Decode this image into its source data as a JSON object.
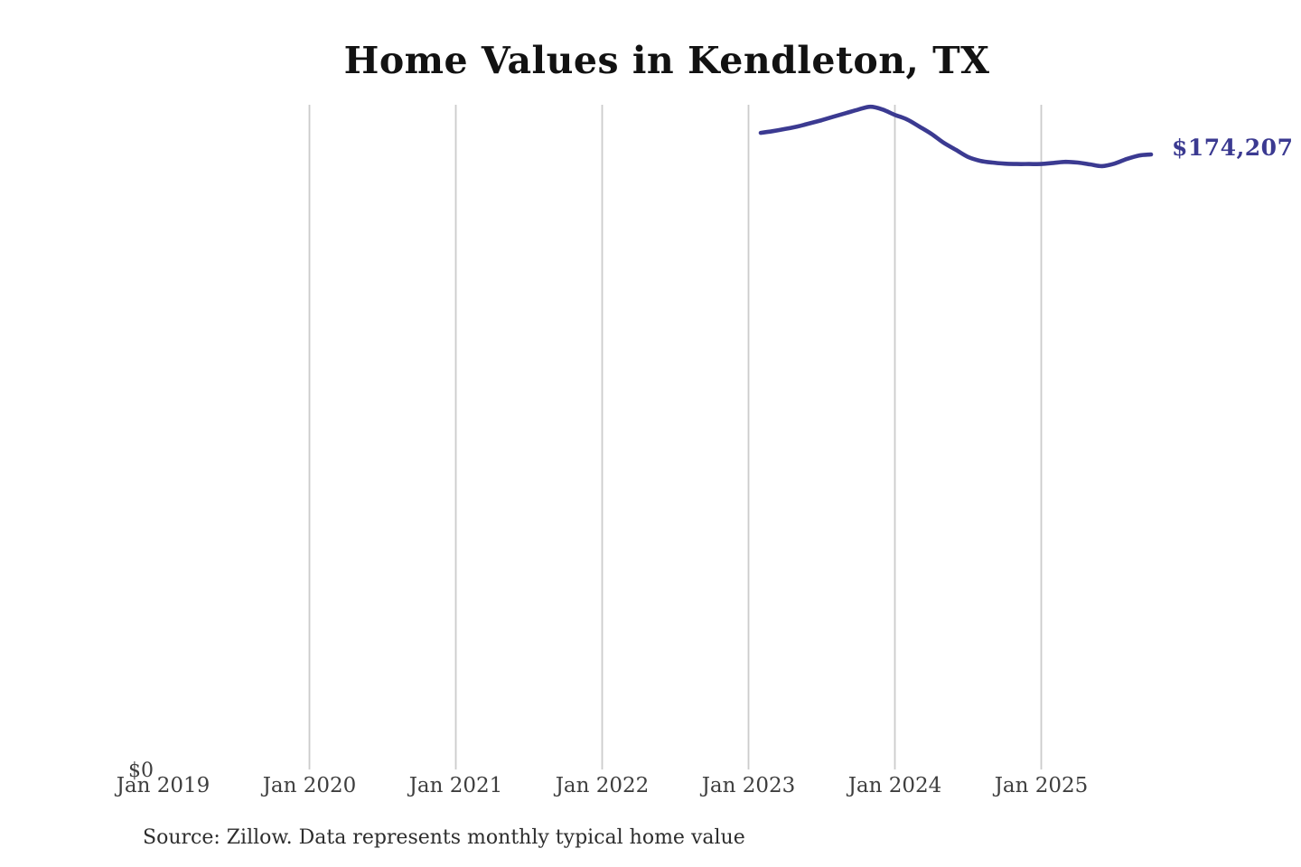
{
  "title": "Home Values in Kendleton, TX",
  "source_note": "Source: Zillow. Data represents monthly typical home value",
  "end_label": "$174,207",
  "colors": {
    "background": "#ffffff",
    "title": "#121212",
    "axis": "#3e3e3e",
    "source": "#2d2d2d",
    "grid": "#cccccc",
    "line": "#3b3a91",
    "value_label": "#3b3a91"
  },
  "chart_data": {
    "type": "line",
    "title": "Home Values in Kendleton, TX",
    "xlabel": "",
    "ylabel": "",
    "grid": "vertical-only",
    "legend": "none",
    "x_tick_labels": [
      "Jan 2019",
      "Jan 2020",
      "Jan 2021",
      "Jan 2022",
      "Jan 2023",
      "Jan 2024",
      "Jan 2025"
    ],
    "y_axis": {
      "min": 0,
      "baseline_label": "$0",
      "only_tick_shown": "$0"
    },
    "end_value": 174207,
    "end_value_label": "$174,207",
    "series": [
      {
        "name": "Monthly typical home value",
        "points": [
          {
            "month": "Feb 2023",
            "value": 180300
          },
          {
            "month": "Mar 2023",
            "value": 180800
          },
          {
            "month": "Apr 2023",
            "value": 181400
          },
          {
            "month": "May 2023",
            "value": 182100
          },
          {
            "month": "Jun 2023",
            "value": 183000
          },
          {
            "month": "Jul 2023",
            "value": 183900
          },
          {
            "month": "Aug 2023",
            "value": 184900
          },
          {
            "month": "Sep 2023",
            "value": 185900
          },
          {
            "month": "Oct 2023",
            "value": 186900
          },
          {
            "month": "Nov 2023",
            "value": 187700
          },
          {
            "month": "Dec 2023",
            "value": 186900
          },
          {
            "month": "Jan 2024",
            "value": 185400
          },
          {
            "month": "Feb 2024",
            "value": 184100
          },
          {
            "month": "Mar 2024",
            "value": 182100
          },
          {
            "month": "Apr 2024",
            "value": 180000
          },
          {
            "month": "May 2024",
            "value": 177500
          },
          {
            "month": "Jun 2024",
            "value": 175500
          },
          {
            "month": "Jul 2024",
            "value": 173500
          },
          {
            "month": "Aug 2024",
            "value": 172400
          },
          {
            "month": "Sep 2024",
            "value": 171900
          },
          {
            "month": "Oct 2024",
            "value": 171600
          },
          {
            "month": "Nov 2024",
            "value": 171500
          },
          {
            "month": "Dec 2024",
            "value": 171500
          },
          {
            "month": "Jan 2025",
            "value": 171500
          },
          {
            "month": "Feb 2025",
            "value": 171800
          },
          {
            "month": "Mar 2025",
            "value": 172100
          },
          {
            "month": "Apr 2025",
            "value": 171900
          },
          {
            "month": "May 2025",
            "value": 171400
          },
          {
            "month": "Jun 2025",
            "value": 170900
          },
          {
            "month": "Jul 2025",
            "value": 171600
          },
          {
            "month": "Aug 2025",
            "value": 172900
          },
          {
            "month": "Sep 2025",
            "value": 173900
          },
          {
            "month": "Oct 2025",
            "value": 174207
          }
        ]
      }
    ]
  }
}
